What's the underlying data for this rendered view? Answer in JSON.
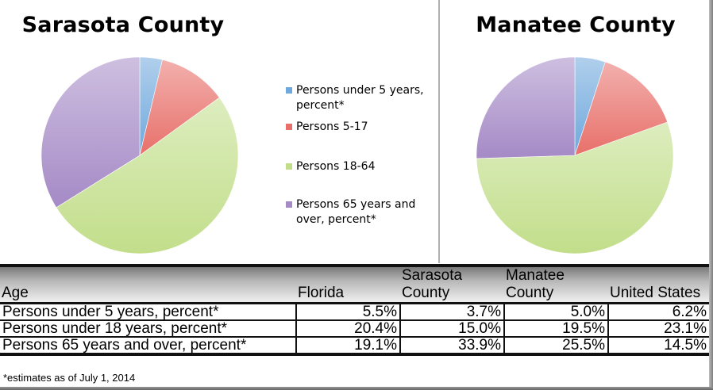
{
  "colors": {
    "under5": "#6fa8dc",
    "age5_17": "#e8706a",
    "age18_64": "#c2de8a",
    "age65plus": "#a58ac6"
  },
  "chart_data": [
    {
      "type": "pie",
      "title": "Sarasota County",
      "start": "12 o'clock, clockwise",
      "categories": [
        "Persons under 5 years, percent*",
        "Persons 5-17",
        "Persons 18-64",
        "Persons 65 years and over, percent*"
      ],
      "values": [
        3.7,
        11.3,
        51.1,
        33.9
      ],
      "legend_position": "right"
    },
    {
      "type": "pie",
      "title": "Manatee County",
      "start": "12 o'clock, clockwise",
      "categories": [
        "Persons under 5 years, percent*",
        "Persons 5-17",
        "Persons 18-64",
        "Persons 65 years and over, percent*"
      ],
      "values": [
        5.0,
        14.5,
        55.0,
        25.5
      ],
      "legend_position": "none"
    },
    {
      "type": "table",
      "columns": [
        "Age",
        "Florida",
        "Sarasota County",
        "Manatee County",
        "United States"
      ],
      "rows": [
        [
          "Persons under 5 years, percent*",
          "5.5%",
          "3.7%",
          "5.0%",
          "6.2%"
        ],
        [
          "Persons under 18 years, percent*",
          "20.4%",
          "15.0%",
          "19.5%",
          "23.1%"
        ],
        [
          "Persons 65 years and over, percent*",
          "19.1%",
          "33.9%",
          "25.5%",
          "14.5%"
        ]
      ]
    }
  ],
  "legend": [
    {
      "label": "Persons under 5 years, percent*",
      "color_key": "under5"
    },
    {
      "label": "Persons 5-17",
      "color_key": "age5_17"
    },
    {
      "label": "Persons 18-64",
      "color_key": "age18_64"
    },
    {
      "label": "Persons 65 years and over, percent*",
      "color_key": "age65plus"
    }
  ],
  "table": {
    "headers": {
      "age": "Age",
      "florida": "Florida",
      "sarasota_line1": "Sarasota",
      "sarasota_line2": "County",
      "manatee_line1": "Manatee",
      "manatee_line2": "County",
      "us": "United States"
    },
    "rows": [
      {
        "label": "Persons under 5 years, percent*",
        "florida": "5.5%",
        "sarasota": "3.7%",
        "manatee": "5.0%",
        "us": "6.2%"
      },
      {
        "label": "Persons under 18 years, percent*",
        "florida": "20.4%",
        "sarasota": "15.0%",
        "manatee": "19.5%",
        "us": "23.1%"
      },
      {
        "label": "Persons 65 years and over, percent*",
        "florida": "19.1%",
        "sarasota": "33.9%",
        "manatee": "25.5%",
        "us": "14.5%"
      }
    ],
    "footnote": "*estimates as of July 1, 2014"
  }
}
